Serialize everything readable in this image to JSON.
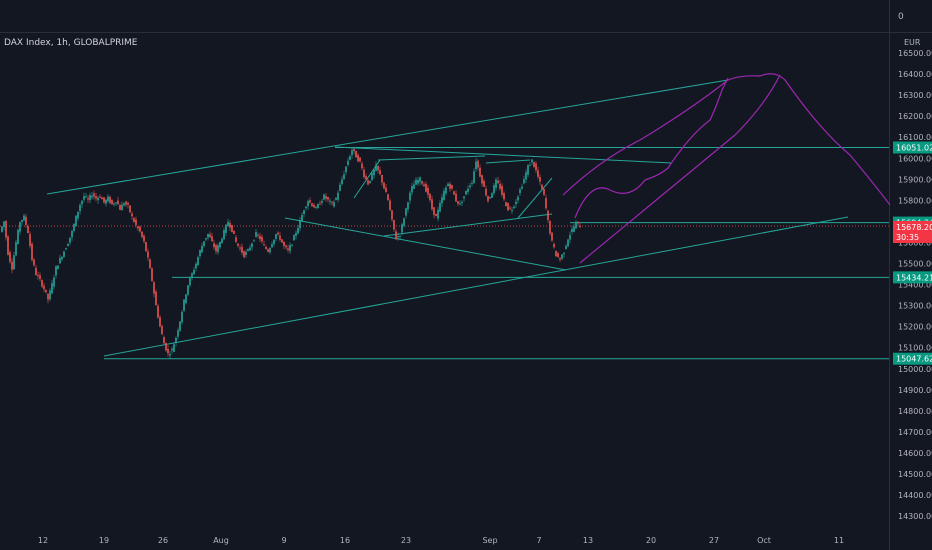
{
  "top_value": "0",
  "symbol_title": "DAX Index, 1h, GLOBALPRIME",
  "currency": "EUR",
  "colors": {
    "background": "#131722",
    "up": "#26a69a",
    "down": "#ef5350",
    "trendline": "#26a69a",
    "projection": "#9c27b0",
    "price_line": "#ef5350",
    "level_badge": "#089981",
    "price_badge": "#f23645"
  },
  "chart_data": {
    "type": "candlestick",
    "title": "DAX Index, 1h, GLOBALPRIME",
    "ylim": [
      14250,
      16560
    ],
    "y_ticks": [
      "16500.00",
      "16400.00",
      "16300.00",
      "16200.00",
      "16100.00",
      "16000.00",
      "15900.00",
      "15800.00",
      "15700.00",
      "15600.00",
      "15500.00",
      "15400.00",
      "15300.00",
      "15200.00",
      "15100.00",
      "15000.00",
      "14900.00",
      "14800.00",
      "14700.00",
      "14600.00",
      "14500.00",
      "14400.00",
      "14300.00"
    ],
    "x_ticks": [
      "12",
      "19",
      "26",
      "Aug",
      "9",
      "16",
      "23",
      "Sep",
      "7",
      "13",
      "20",
      "27",
      "Oct",
      "11"
    ],
    "price_levels": [
      {
        "label": "16051.02",
        "value": 16051.02
      },
      {
        "label": "15694.34",
        "value": 15694.34
      },
      {
        "label": "15434.21",
        "value": 15434.21
      },
      {
        "label": "15047.62",
        "value": 15047.62
      }
    ],
    "current_price": {
      "label": "15678.20",
      "countdown": "30:35",
      "value": 15678.2
    },
    "price_path": [
      [
        0,
        15650
      ],
      [
        2,
        15700
      ],
      [
        4,
        15550
      ],
      [
        6,
        15480
      ],
      [
        8,
        15600
      ],
      [
        10,
        15700
      ],
      [
        12,
        15720
      ],
      [
        14,
        15650
      ],
      [
        16,
        15520
      ],
      [
        18,
        15450
      ],
      [
        20,
        15420
      ],
      [
        22,
        15380
      ],
      [
        24,
        15330
      ],
      [
        26,
        15400
      ],
      [
        28,
        15480
      ],
      [
        30,
        15520
      ],
      [
        32,
        15560
      ],
      [
        34,
        15600
      ],
      [
        36,
        15650
      ],
      [
        38,
        15720
      ],
      [
        40,
        15780
      ],
      [
        42,
        15820
      ],
      [
        44,
        15800
      ],
      [
        46,
        15830
      ],
      [
        48,
        15810
      ],
      [
        50,
        15820
      ],
      [
        52,
        15790
      ],
      [
        54,
        15810
      ],
      [
        56,
        15780
      ],
      [
        58,
        15800
      ],
      [
        60,
        15760
      ],
      [
        62,
        15790
      ],
      [
        64,
        15770
      ],
      [
        66,
        15720
      ],
      [
        68,
        15680
      ],
      [
        70,
        15650
      ],
      [
        72,
        15600
      ],
      [
        74,
        15520
      ],
      [
        76,
        15420
      ],
      [
        78,
        15300
      ],
      [
        80,
        15200
      ],
      [
        82,
        15120
      ],
      [
        84,
        15070
      ],
      [
        86,
        15090
      ],
      [
        88,
        15150
      ],
      [
        90,
        15230
      ],
      [
        92,
        15320
      ],
      [
        94,
        15400
      ],
      [
        96,
        15450
      ],
      [
        98,
        15500
      ],
      [
        100,
        15560
      ],
      [
        102,
        15610
      ],
      [
        104,
        15640
      ],
      [
        106,
        15600
      ],
      [
        108,
        15560
      ],
      [
        110,
        15600
      ],
      [
        112,
        15650
      ],
      [
        114,
        15700
      ],
      [
        116,
        15660
      ],
      [
        118,
        15600
      ],
      [
        120,
        15570
      ],
      [
        122,
        15540
      ],
      [
        124,
        15560
      ],
      [
        126,
        15600
      ],
      [
        128,
        15640
      ],
      [
        130,
        15620
      ],
      [
        132,
        15580
      ],
      [
        134,
        15560
      ],
      [
        136,
        15600
      ],
      [
        138,
        15640
      ],
      [
        140,
        15620
      ],
      [
        142,
        15580
      ],
      [
        144,
        15560
      ],
      [
        146,
        15600
      ],
      [
        148,
        15650
      ],
      [
        150,
        15700
      ],
      [
        152,
        15760
      ],
      [
        154,
        15800
      ],
      [
        156,
        15780
      ],
      [
        158,
        15760
      ],
      [
        160,
        15790
      ],
      [
        162,
        15820
      ],
      [
        164,
        15800
      ],
      [
        166,
        15780
      ],
      [
        168,
        15810
      ],
      [
        170,
        15870
      ],
      [
        172,
        15930
      ],
      [
        174,
        15990
      ],
      [
        176,
        16040
      ],
      [
        178,
        16010
      ],
      [
        180,
        15980
      ],
      [
        182,
        15920
      ],
      [
        184,
        15880
      ],
      [
        186,
        15920
      ],
      [
        188,
        15960
      ],
      [
        190,
        15920
      ],
      [
        192,
        15860
      ],
      [
        194,
        15800
      ],
      [
        196,
        15700
      ],
      [
        198,
        15620
      ],
      [
        200,
        15640
      ],
      [
        202,
        15720
      ],
      [
        204,
        15800
      ],
      [
        206,
        15860
      ],
      [
        208,
        15890
      ],
      [
        210,
        15900
      ],
      [
        212,
        15870
      ],
      [
        214,
        15830
      ],
      [
        216,
        15760
      ],
      [
        218,
        15720
      ],
      [
        220,
        15780
      ],
      [
        222,
        15840
      ],
      [
        224,
        15880
      ],
      [
        226,
        15850
      ],
      [
        228,
        15800
      ],
      [
        230,
        15780
      ],
      [
        232,
        15820
      ],
      [
        234,
        15860
      ],
      [
        236,
        15890
      ],
      [
        238,
        15990
      ],
      [
        240,
        15920
      ],
      [
        242,
        15860
      ],
      [
        244,
        15800
      ],
      [
        246,
        15840
      ],
      [
        248,
        15890
      ],
      [
        250,
        15860
      ],
      [
        252,
        15800
      ],
      [
        254,
        15760
      ],
      [
        256,
        15760
      ],
      [
        258,
        15800
      ],
      [
        260,
        15850
      ],
      [
        262,
        15900
      ],
      [
        264,
        15960
      ],
      [
        266,
        15990
      ],
      [
        268,
        15940
      ],
      [
        270,
        15880
      ],
      [
        272,
        15820
      ],
      [
        274,
        15700
      ],
      [
        276,
        15600
      ],
      [
        278,
        15540
      ],
      [
        280,
        15520
      ],
      [
        282,
        15560
      ],
      [
        284,
        15620
      ],
      [
        286,
        15660
      ],
      [
        288,
        15690
      ],
      [
        290,
        15678
      ]
    ]
  }
}
